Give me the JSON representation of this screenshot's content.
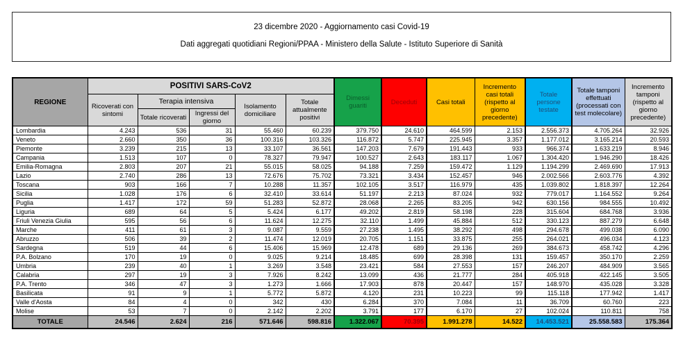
{
  "title": {
    "line1": "23 dicembre 2020 - Aggiornamento casi Covid-19",
    "line2": "Dati aggregati quotidiani Regioni/PPAA - Ministero della Salute - Istituto Superiore di Sanità"
  },
  "colors": {
    "green": "#16A24A",
    "dark_green_text": "#0A5D2C",
    "red": "#FE0000",
    "dark_red_text": "#9C0006",
    "yellow": "#FFC000",
    "cyan": "#00B0F0",
    "dark_blue_text": "#1F4E79",
    "periwinkle": "#B4C6E7",
    "light_gray": "#D9D9D9",
    "mid_gray": "#A6A6A6",
    "total_gray": "#BFBFBF"
  },
  "table": {
    "headers": {
      "regione": "REGIONE",
      "positivi_group": "POSITIVI SARS-CoV2",
      "ricoverati_con_sintomi": "Ricoverati con sintomi",
      "terapia_intensiva_group": "Terapia intensiva",
      "totale_ricoverati": "Totale ricoverati",
      "ingressi_del_giorno": "Ingressi del giorno",
      "isolamento_domiciliare": "Isolamento domiciliare",
      "totale_attualmente_positivi": "Totale attualmente positivi",
      "dimessi_guariti": "Dimessi guariti",
      "deceduti": "Deceduti",
      "casi_totali": "Casi totali",
      "incremento_casi_totali": "Incremento casi totali (rispetto al giorno precedente)",
      "totale_persone_testate": "Totale persone testate",
      "totale_tamponi": "Totale tamponi effettuati (processati con test molecolare)",
      "incremento_tamponi": "Incremento tamponi (rispetto al giorno precedente)"
    },
    "column_keys": [
      "ricoverati_con_sintomi",
      "totale_ricoverati",
      "ingressi_del_giorno",
      "isolamento_domiciliare",
      "totale_attualmente_positivi",
      "dimessi_guariti",
      "deceduti",
      "casi_totali",
      "incremento_casi_totali",
      "totale_persone_testate",
      "totale_tamponi",
      "incremento_tamponi"
    ],
    "rows": [
      {
        "regione": "Lombardia",
        "values": [
          "4.243",
          "536",
          "31",
          "55.460",
          "60.239",
          "379.750",
          "24.610",
          "464.599",
          "2.153",
          "2.556.373",
          "4.705.264",
          "32.926"
        ]
      },
      {
        "regione": "Veneto",
        "values": [
          "2.660",
          "350",
          "36",
          "100.316",
          "103.326",
          "116.872",
          "5.747",
          "225.945",
          "3.357",
          "1.177.012",
          "3.165.214",
          "20.593"
        ]
      },
      {
        "regione": "Piemonte",
        "values": [
          "3.239",
          "215",
          "13",
          "33.107",
          "36.561",
          "147.203",
          "7.679",
          "191.443",
          "933",
          "966.374",
          "1.633.219",
          "8.946"
        ]
      },
      {
        "regione": "Campania",
        "values": [
          "1.513",
          "107",
          "0",
          "78.327",
          "79.947",
          "100.527",
          "2.643",
          "183.117",
          "1.067",
          "1.304.420",
          "1.946.290",
          "18.426"
        ]
      },
      {
        "regione": "Emilia-Romagna",
        "values": [
          "2.803",
          "207",
          "21",
          "55.015",
          "58.025",
          "94.188",
          "7.259",
          "159.472",
          "1.129",
          "1.194.299",
          "2.469.690",
          "17.913"
        ]
      },
      {
        "regione": "Lazio",
        "values": [
          "2.740",
          "286",
          "13",
          "72.676",
          "75.702",
          "73.321",
          "3.434",
          "152.457",
          "946",
          "2.002.566",
          "2.603.776",
          "4.392"
        ]
      },
      {
        "regione": "Toscana",
        "values": [
          "903",
          "166",
          "7",
          "10.288",
          "11.357",
          "102.105",
          "3.517",
          "116.979",
          "435",
          "1.039.802",
          "1.818.397",
          "12.264"
        ]
      },
      {
        "regione": "Sicilia",
        "values": [
          "1.028",
          "176",
          "6",
          "32.410",
          "33.614",
          "51.197",
          "2.213",
          "87.024",
          "932",
          "779.017",
          "1.164.552",
          "9.264"
        ]
      },
      {
        "regione": "Puglia",
        "values": [
          "1.417",
          "172",
          "59",
          "51.283",
          "52.872",
          "28.068",
          "2.265",
          "83.205",
          "942",
          "630.156",
          "984.555",
          "10.492"
        ]
      },
      {
        "regione": "Liguria",
        "values": [
          "689",
          "64",
          "5",
          "5.424",
          "6.177",
          "49.202",
          "2.819",
          "58.198",
          "228",
          "315.604",
          "684.768",
          "3.936"
        ]
      },
      {
        "regione": "Friuli Venezia Giulia",
        "values": [
          "595",
          "56",
          "6",
          "11.624",
          "12.275",
          "32.110",
          "1.499",
          "45.884",
          "512",
          "330.123",
          "887.279",
          "6.648"
        ]
      },
      {
        "regione": "Marche",
        "values": [
          "411",
          "61",
          "3",
          "9.087",
          "9.559",
          "27.238",
          "1.495",
          "38.292",
          "498",
          "294.678",
          "499.038",
          "6.090"
        ]
      },
      {
        "regione": "Abruzzo",
        "values": [
          "506",
          "39",
          "2",
          "11.474",
          "12.019",
          "20.705",
          "1.151",
          "33.875",
          "255",
          "264.021",
          "496.034",
          "4.123"
        ]
      },
      {
        "regione": "Sardegna",
        "values": [
          "519",
          "44",
          "6",
          "15.406",
          "15.969",
          "12.478",
          "689",
          "29.136",
          "269",
          "384.673",
          "458.742",
          "4.296"
        ]
      },
      {
        "regione": "P.A. Bolzano",
        "values": [
          "170",
          "19",
          "0",
          "9.025",
          "9.214",
          "18.485",
          "699",
          "28.398",
          "131",
          "159.457",
          "350.170",
          "2.259"
        ]
      },
      {
        "regione": "Umbria",
        "values": [
          "239",
          "40",
          "1",
          "3.269",
          "3.548",
          "23.421",
          "584",
          "27.553",
          "157",
          "246.207",
          "484.909",
          "3.565"
        ]
      },
      {
        "regione": "Calabria",
        "values": [
          "297",
          "19",
          "3",
          "7.926",
          "8.242",
          "13.099",
          "436",
          "21.777",
          "284",
          "405.918",
          "422.145",
          "3.505"
        ]
      },
      {
        "regione": "P.A. Trento",
        "values": [
          "346",
          "47",
          "3",
          "1.273",
          "1.666",
          "17.903",
          "878",
          "20.447",
          "157",
          "148.970",
          "435.028",
          "3.328"
        ]
      },
      {
        "regione": "Basilicata",
        "values": [
          "91",
          "9",
          "1",
          "5.772",
          "5.872",
          "4.120",
          "231",
          "10.223",
          "99",
          "115.118",
          "177.942",
          "1.417"
        ]
      },
      {
        "regione": "Valle d'Aosta",
        "values": [
          "84",
          "4",
          "0",
          "342",
          "430",
          "6.284",
          "370",
          "7.084",
          "11",
          "36.709",
          "60.760",
          "223"
        ]
      },
      {
        "regione": "Molise",
        "values": [
          "53",
          "7",
          "0",
          "2.142",
          "2.202",
          "3.791",
          "177",
          "6.170",
          "27",
          "102.024",
          "110.811",
          "758"
        ]
      }
    ],
    "total": {
      "label": "TOTALE",
      "values": [
        "24.546",
        "2.624",
        "216",
        "571.646",
        "598.816",
        "1.322.067",
        "70.395",
        "1.991.278",
        "14.522",
        "14.453.521",
        "25.558.583",
        "175.364"
      ]
    }
  }
}
